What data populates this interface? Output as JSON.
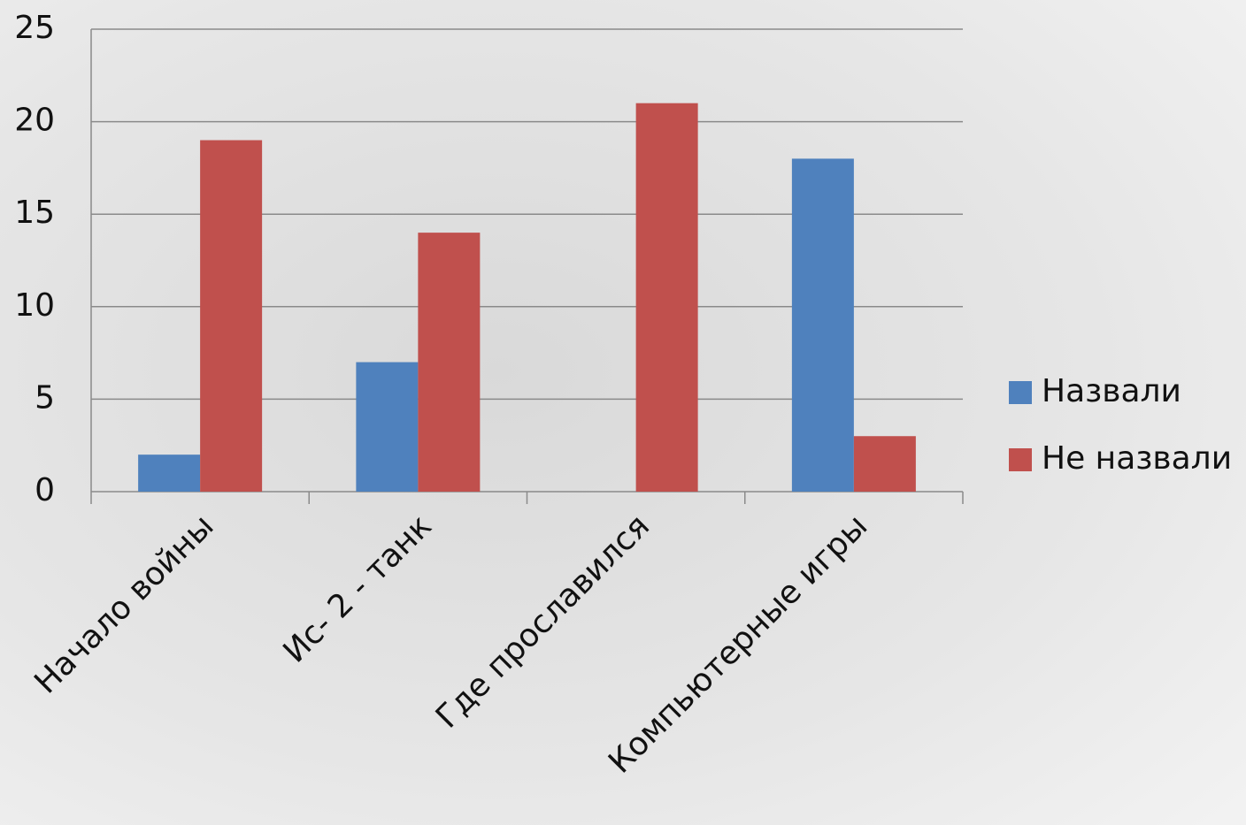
{
  "chart_data": {
    "type": "bar",
    "categories": [
      "Начало войны",
      "Ис- 2 - танк",
      "Где прославился",
      "Компьютерные игры"
    ],
    "series": [
      {
        "name": "Назвали",
        "color": "#4f81bd",
        "values": [
          2,
          7,
          0,
          18
        ]
      },
      {
        "name": "Не назвали",
        "color": "#c0504d",
        "values": [
          19,
          14,
          21,
          3
        ]
      }
    ],
    "ylim": [
      0,
      25
    ],
    "yticks": [
      0,
      5,
      10,
      15,
      20,
      25
    ],
    "grid": true,
    "legend": "right"
  }
}
